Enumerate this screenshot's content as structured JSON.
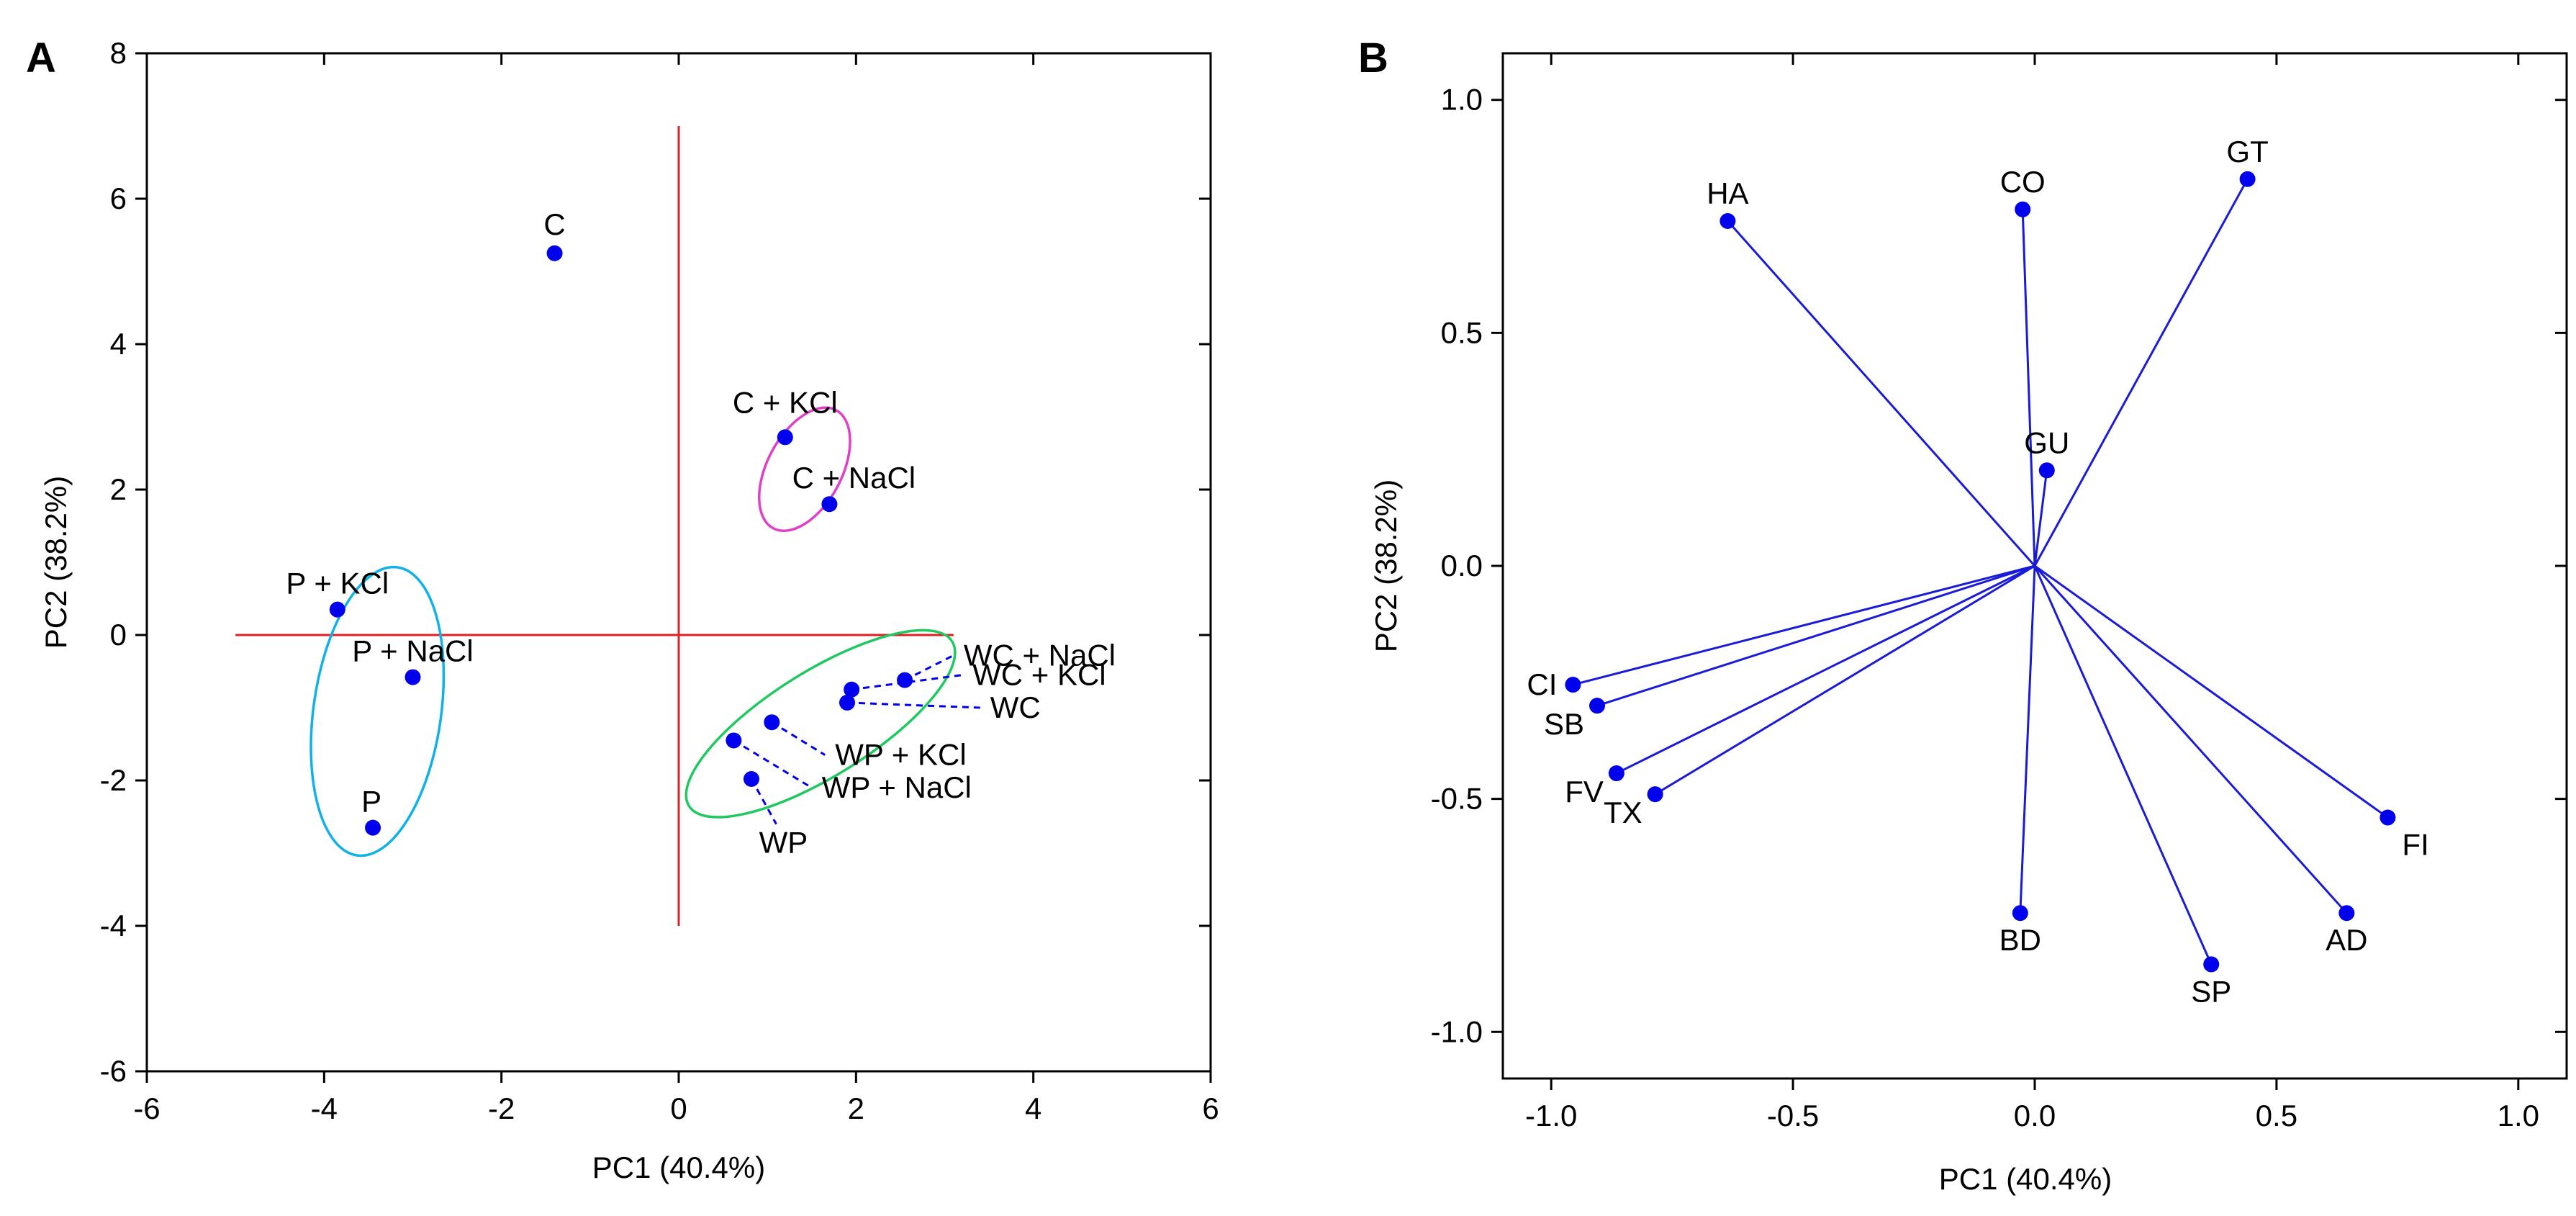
{
  "colors": {
    "points": "#0000ee",
    "vectors": "#1a1ad9",
    "zero_axes": "#e02020",
    "ellipse_c": "#e040c8",
    "ellipse_p": "#10b0e8",
    "ellipse_w": "#20c860",
    "frame": "#000000"
  },
  "chart_data": [
    {
      "panel": "A",
      "type": "scatter",
      "xlabel": "PC1 (40.4%)",
      "ylabel": "PC2 (38.2%)",
      "xlim": [
        -6,
        6
      ],
      "ylim": [
        -6,
        8
      ],
      "xticks": [
        {
          "value": -6,
          "label": "-6"
        },
        {
          "value": -4,
          "label": "-4"
        },
        {
          "value": -2,
          "label": "-2"
        },
        {
          "value": 0,
          "label": "0"
        },
        {
          "value": 2,
          "label": "2"
        },
        {
          "value": 4,
          "label": "4"
        },
        {
          "value": 6,
          "label": "6"
        }
      ],
      "yticks": [
        {
          "value": -6,
          "label": "-6"
        },
        {
          "value": -4,
          "label": "-4"
        },
        {
          "value": -2,
          "label": "-2"
        },
        {
          "value": 0,
          "label": "0"
        },
        {
          "value": 2,
          "label": "2"
        },
        {
          "value": 4,
          "label": "4"
        },
        {
          "value": 6,
          "label": "6"
        },
        {
          "value": 8,
          "label": "8"
        }
      ],
      "reference_lines": {
        "horizontal": {
          "y": 0,
          "x_from": -5,
          "x_to": 3.1
        },
        "vertical": {
          "x": 0,
          "y_from": -4,
          "y_to": 7
        }
      },
      "points": [
        {
          "name": "C",
          "x": -1.4,
          "y": 5.25,
          "label_pos": "above"
        },
        {
          "name": "C + KCl",
          "x": 1.2,
          "y": 2.72,
          "label_pos": "above"
        },
        {
          "name": "C + NaCl",
          "x": 1.7,
          "y": 1.8,
          "label_pos": "above"
        },
        {
          "name": "P + KCl",
          "x": -3.85,
          "y": 0.35,
          "label_pos": "above"
        },
        {
          "name": "P + NaCl",
          "x": -3.0,
          "y": -0.58,
          "label_pos": "above"
        },
        {
          "name": "P",
          "x": -3.45,
          "y": -2.65,
          "label_pos": "above"
        },
        {
          "name": "WC + NaCl",
          "x": 2.55,
          "y": -0.62,
          "leader_to": {
            "x": 3.1,
            "y": -0.28
          }
        },
        {
          "name": "WC + KCl",
          "x": 1.95,
          "y": -0.75,
          "leader_to": {
            "x": 3.2,
            "y": -0.55
          }
        },
        {
          "name": "WC",
          "x": 1.9,
          "y": -0.93,
          "leader_to": {
            "x": 3.4,
            "y": -1.0
          }
        },
        {
          "name": "WP + KCl",
          "x": 1.05,
          "y": -1.2,
          "leader_to": {
            "x": 1.65,
            "y": -1.65
          }
        },
        {
          "name": "WP + NaCl",
          "x": 0.62,
          "y": -1.45,
          "leader_to": {
            "x": 1.5,
            "y": -2.1
          }
        },
        {
          "name": "WP",
          "x": 0.82,
          "y": -1.98,
          "leader_to": {
            "x": 1.1,
            "y": -2.6
          }
        }
      ],
      "ellipses": [
        {
          "group": "C + KCl / C + NaCl",
          "cx": 1.42,
          "cy": 2.28,
          "rx": 0.42,
          "ry": 0.92,
          "tilt_deg": 28,
          "color": "#e040c8"
        },
        {
          "group": "P / P + KCl / P + NaCl",
          "cx": -3.4,
          "cy": -1.05,
          "rx": 0.72,
          "ry": 2.0,
          "tilt_deg": 8,
          "color": "#10b0e8"
        },
        {
          "group": "WC / WP",
          "cx": 1.6,
          "cy": -1.22,
          "rx": 1.75,
          "ry": 0.72,
          "tilt_deg": -32,
          "color": "#20c860"
        }
      ]
    },
    {
      "panel": "B",
      "type": "scatter",
      "subtype": "loading-vectors",
      "xlabel": "PC1 (40.4%)",
      "ylabel": "PC2 (38.2%)",
      "xlim": [
        -1.1,
        1.1
      ],
      "ylim": [
        -1.1,
        1.1
      ],
      "xticks": [
        {
          "value": -1.0,
          "label": "-1.0"
        },
        {
          "value": -0.5,
          "label": "-0.5"
        },
        {
          "value": 0.0,
          "label": "0.0"
        },
        {
          "value": 0.5,
          "label": "0.5"
        },
        {
          "value": 1.0,
          "label": "1.0"
        }
      ],
      "yticks": [
        {
          "value": -1.0,
          "label": "-1.0"
        },
        {
          "value": -0.5,
          "label": "-0.5"
        },
        {
          "value": 0.0,
          "label": "0.0"
        },
        {
          "value": 0.5,
          "label": "0.5"
        },
        {
          "value": 1.0,
          "label": "1.0"
        }
      ],
      "points": [
        {
          "name": "HA",
          "x": -0.635,
          "y": 0.74,
          "label_pos": "above"
        },
        {
          "name": "CO",
          "x": -0.025,
          "y": 0.765,
          "label_pos": "above"
        },
        {
          "name": "GT",
          "x": 0.44,
          "y": 0.83,
          "label_pos": "above"
        },
        {
          "name": "GU",
          "x": 0.025,
          "y": 0.205,
          "label_pos": "above"
        },
        {
          "name": "CI",
          "x": -0.955,
          "y": -0.255,
          "label_pos": "left"
        },
        {
          "name": "SB",
          "x": -0.905,
          "y": -0.3,
          "label_pos": "below-left"
        },
        {
          "name": "FV",
          "x": -0.865,
          "y": -0.445,
          "label_pos": "below-left"
        },
        {
          "name": "TX",
          "x": -0.785,
          "y": -0.49,
          "label_pos": "below-left"
        },
        {
          "name": "BD",
          "x": -0.03,
          "y": -0.745,
          "label_pos": "below"
        },
        {
          "name": "SP",
          "x": 0.365,
          "y": -0.855,
          "label_pos": "below"
        },
        {
          "name": "AD",
          "x": 0.645,
          "y": -0.745,
          "label_pos": "below"
        },
        {
          "name": "FI",
          "x": 0.73,
          "y": -0.54,
          "label_pos": "below-right"
        }
      ]
    }
  ]
}
